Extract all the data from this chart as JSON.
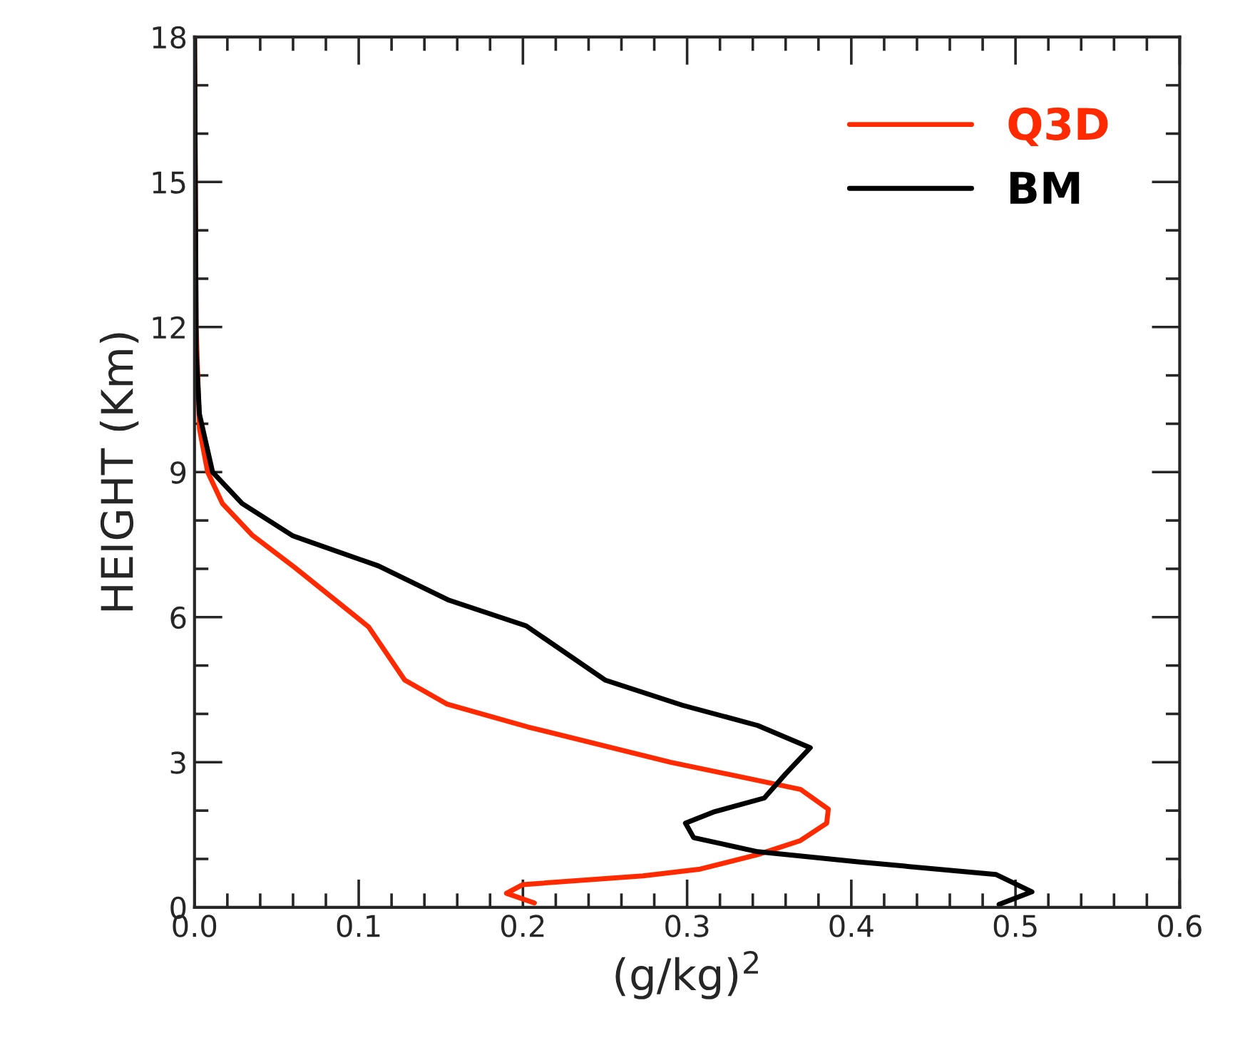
{
  "chart_data": {
    "type": "line",
    "xlabel": "(g/kg)$^{2}$",
    "ylabel": "HEIGHT (Km)",
    "xlim": [
      0.0,
      0.6
    ],
    "xticks": [
      {
        "value": 0,
        "label": "0.0"
      },
      0.1,
      0.2,
      0.3,
      0.4,
      0.5,
      0.6
    ],
    "ylim": [
      0,
      18
    ],
    "yticks": [
      0,
      3,
      6,
      9,
      12,
      15,
      18
    ],
    "legend": "top right",
    "grid": false,
    "line_style": "solid",
    "marker": "none",
    "series": [
      {
        "name": "Q3D",
        "color": "#ff2a00",
        "x": [
          0.207,
          0.19,
          0.2,
          0.273,
          0.308,
          0.343,
          0.369,
          0.385,
          0.386,
          0.369,
          0.29,
          0.203,
          0.154,
          0.128,
          0.106,
          0.061,
          0.035,
          0.017,
          0.008,
          0.003,
          0.001,
          0.0
        ],
        "values": [
          0.09,
          0.29,
          0.47,
          0.65,
          0.79,
          1.09,
          1.38,
          1.74,
          2.03,
          2.44,
          3.0,
          3.73,
          4.2,
          4.7,
          5.8,
          7.03,
          7.7,
          8.35,
          9.0,
          9.9,
          12.0,
          18.0
        ]
      },
      {
        "name": "BM",
        "color": "#000000",
        "x": [
          0.49,
          0.51,
          0.488,
          0.404,
          0.343,
          0.304,
          0.299,
          0.316,
          0.347,
          0.36,
          0.375,
          0.343,
          0.297,
          0.25,
          0.202,
          0.155,
          0.112,
          0.06,
          0.029,
          0.011,
          0.003,
          0.001,
          0.0
        ],
        "values": [
          0.06,
          0.32,
          0.68,
          0.94,
          1.15,
          1.44,
          1.74,
          1.97,
          2.26,
          2.76,
          3.3,
          3.76,
          4.18,
          4.7,
          5.82,
          6.35,
          7.06,
          7.68,
          8.35,
          9.0,
          10.2,
          11.5,
          18.0
        ]
      }
    ]
  }
}
